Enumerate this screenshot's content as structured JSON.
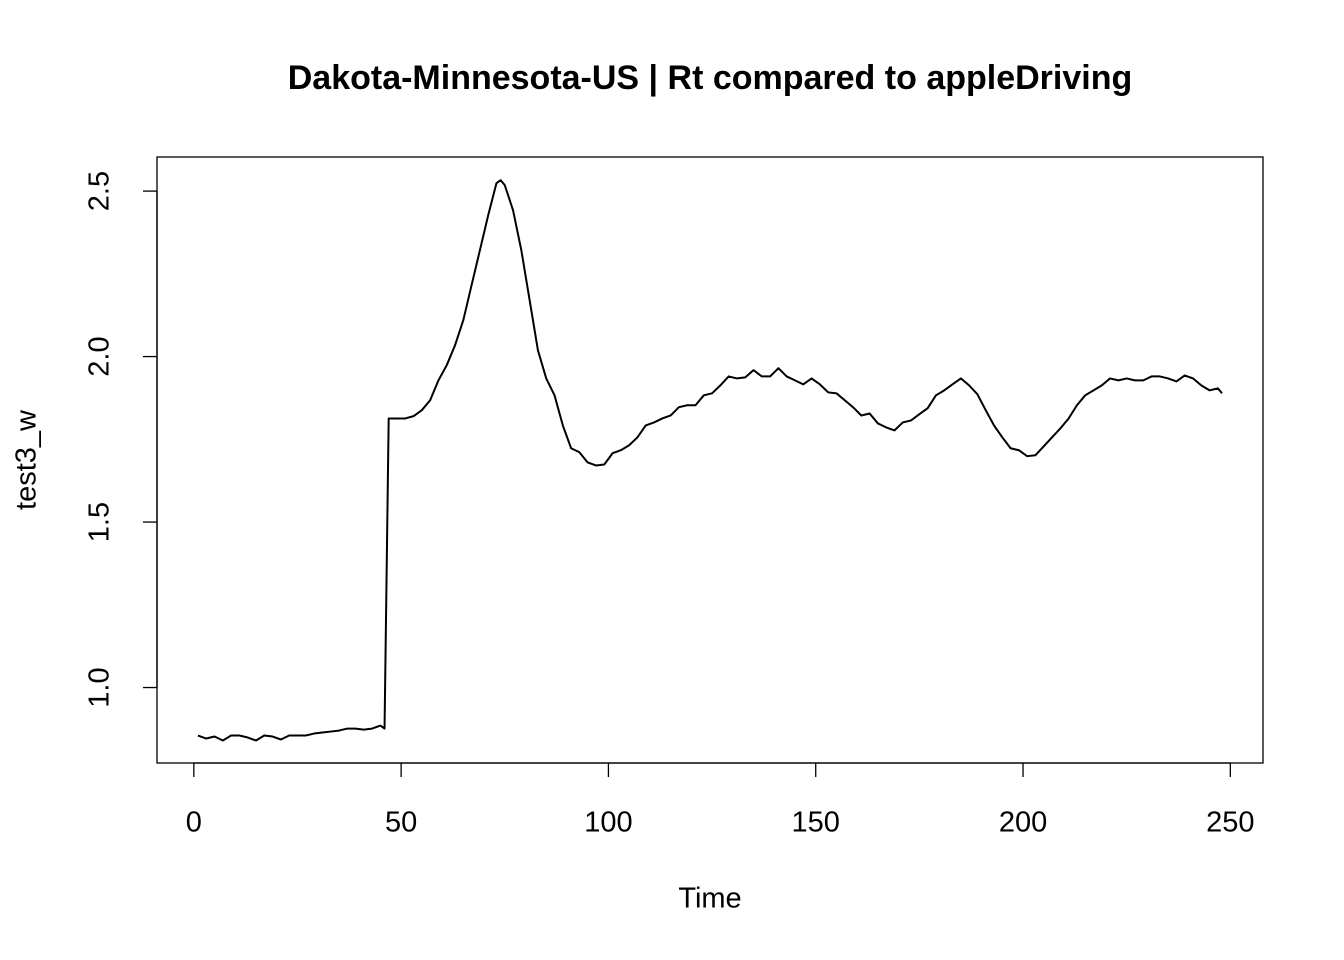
{
  "chart_data": {
    "type": "line",
    "title": "Dakota-Minnesota-US | Rt compared to appleDriving",
    "x_label": "Time",
    "y_label": "test3_w",
    "x": [
      1,
      3,
      5,
      7,
      9,
      11,
      13,
      15,
      17,
      19,
      21,
      23,
      25,
      27,
      29,
      31,
      33,
      35,
      37,
      39,
      41,
      43,
      45,
      46,
      47,
      49,
      51,
      53,
      55,
      57,
      59,
      61,
      63,
      65,
      67,
      69,
      71,
      73,
      74,
      75,
      77,
      79,
      81,
      83,
      85,
      87,
      89,
      91,
      93,
      95,
      97,
      99,
      101,
      103,
      105,
      107,
      109,
      111,
      113,
      115,
      117,
      119,
      121,
      123,
      125,
      127,
      129,
      131,
      133,
      135,
      137,
      139,
      141,
      143,
      145,
      147,
      149,
      151,
      153,
      155,
      157,
      159,
      161,
      163,
      165,
      167,
      169,
      171,
      173,
      175,
      177,
      179,
      181,
      183,
      185,
      187,
      189,
      191,
      193,
      195,
      197,
      199,
      201,
      203,
      205,
      207,
      209,
      211,
      213,
      215,
      217,
      219,
      221,
      223,
      225,
      227,
      229,
      231,
      233,
      235,
      237,
      239,
      241,
      243,
      245,
      247,
      248
    ],
    "series": [
      {
        "name": "test3_w",
        "color": "#000000",
        "values": [
          0.855,
          0.846,
          0.852,
          0.84,
          0.855,
          0.855,
          0.849,
          0.84,
          0.855,
          0.852,
          0.843,
          0.855,
          0.855,
          0.855,
          0.861,
          0.864,
          0.867,
          0.87,
          0.876,
          0.876,
          0.873,
          0.876,
          0.885,
          0.876,
          1.813,
          1.813,
          1.813,
          1.82,
          1.838,
          1.868,
          1.928,
          1.974,
          2.034,
          2.11,
          2.216,
          2.321,
          2.427,
          2.524,
          2.533,
          2.518,
          2.442,
          2.321,
          2.17,
          2.019,
          1.934,
          1.883,
          1.792,
          1.723,
          1.711,
          1.68,
          1.671,
          1.674,
          1.708,
          1.717,
          1.732,
          1.756,
          1.792,
          1.801,
          1.813,
          1.822,
          1.847,
          1.853,
          1.853,
          1.883,
          1.889,
          1.913,
          1.94,
          1.934,
          1.937,
          1.959,
          1.94,
          1.94,
          1.965,
          1.94,
          1.928,
          1.916,
          1.934,
          1.916,
          1.892,
          1.889,
          1.868,
          1.847,
          1.822,
          1.828,
          1.798,
          1.786,
          1.777,
          1.801,
          1.807,
          1.826,
          1.844,
          1.883,
          1.898,
          1.916,
          1.934,
          1.913,
          1.886,
          1.838,
          1.792,
          1.756,
          1.723,
          1.717,
          1.699,
          1.702,
          1.729,
          1.756,
          1.783,
          1.813,
          1.853,
          1.883,
          1.898,
          1.913,
          1.934,
          1.928,
          1.934,
          1.928,
          1.928,
          1.94,
          1.94,
          1.934,
          1.925,
          1.943,
          1.934,
          1.913,
          1.898,
          1.904,
          1.889
        ]
      }
    ],
    "xlim": [
      -8.88,
      257.88
    ],
    "ylim": [
      0.772,
      2.603
    ],
    "xticks": [
      0,
      50,
      100,
      150,
      200,
      250
    ],
    "yticks": [
      {
        "value": 1.0,
        "label": "1.0"
      },
      1.5,
      {
        "value": 2.0,
        "label": "2.0"
      },
      2.5
    ],
    "grid": false
  }
}
